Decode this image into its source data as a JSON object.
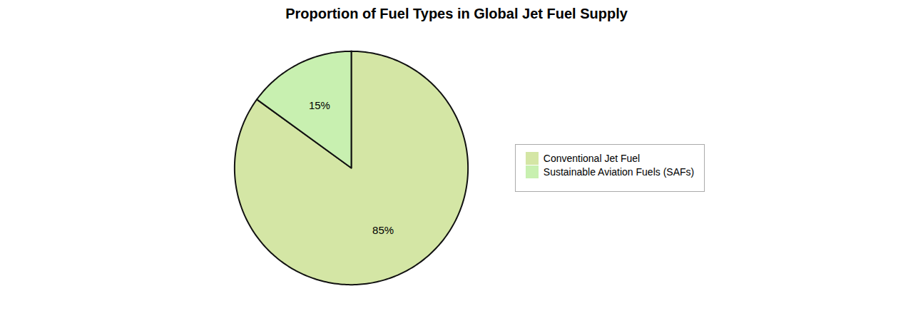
{
  "chart_data": {
    "type": "pie",
    "title": "Proportion of Fuel Types in Global Jet Fuel Supply",
    "categories": [
      "Conventional Jet Fuel",
      "Sustainable Aviation Fuels (SAFs)"
    ],
    "values": [
      85,
      15
    ],
    "value_labels": [
      "85%",
      "15%"
    ],
    "colors": [
      "#d4e6a5",
      "#c8f0b0"
    ],
    "data_labels": true,
    "legend": "right"
  }
}
